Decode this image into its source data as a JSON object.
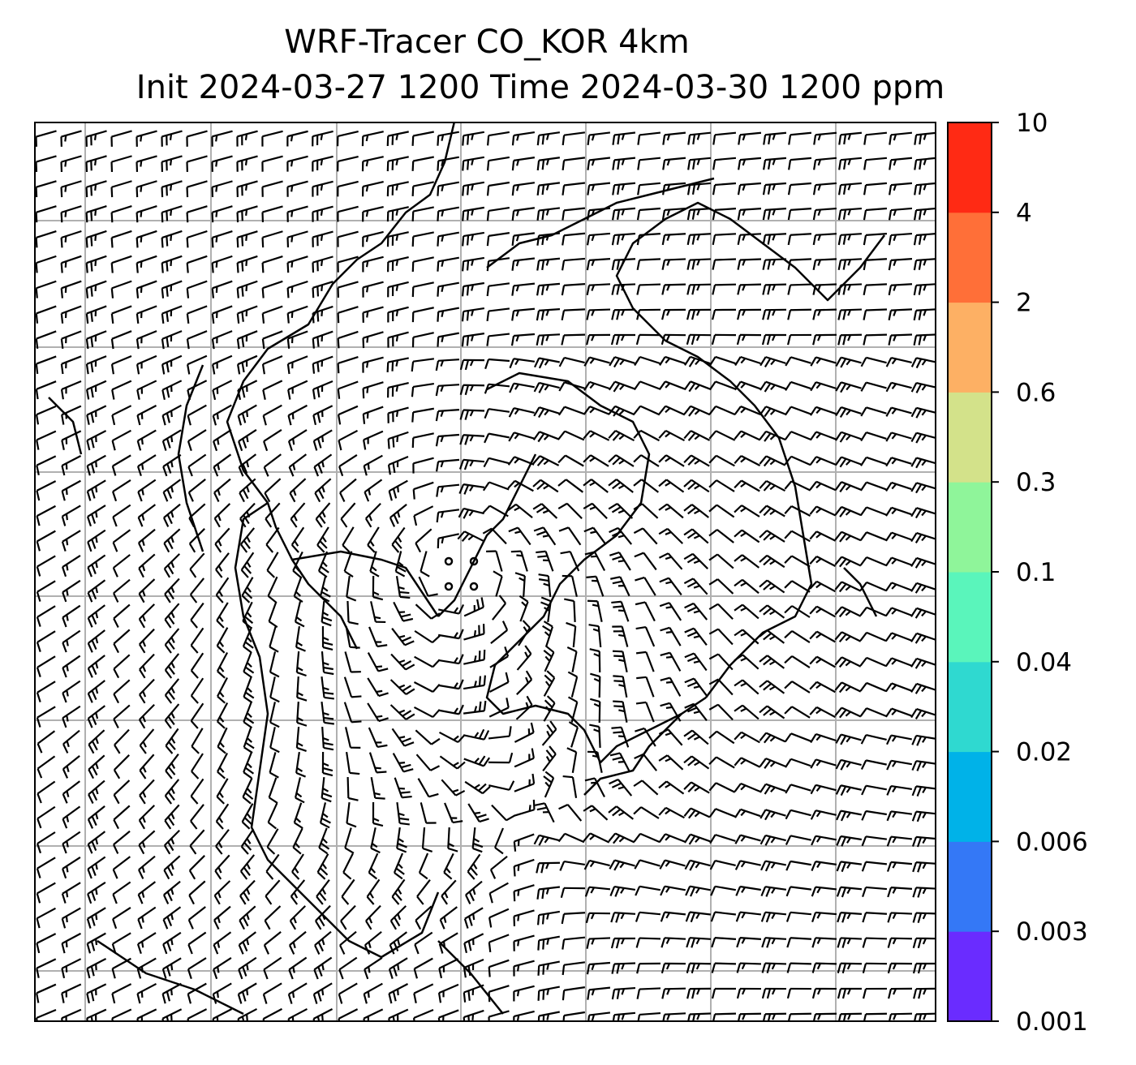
{
  "title": {
    "line1": "WRF-Tracer CO_KOR 4km",
    "line2": "Init 2024-03-27 1200 Time 2024-03-30 1200 ppm"
  },
  "map": {
    "gridlines": true,
    "gridline_color": "#b0b0b0",
    "overlay": "wind barbs",
    "coastline_color": "#000000"
  },
  "colorbar": {
    "levels": [
      "0.001",
      "0.003",
      "0.006",
      "0.02",
      "0.04",
      "0.1",
      "0.3",
      "0.6",
      "2",
      "4",
      "10"
    ],
    "colors": [
      "#6a2cff",
      "#3478f6",
      "#00b2e8",
      "#2fd9d0",
      "#5af5bb",
      "#8ff59a",
      "#d3e28a",
      "#fdb064",
      "#ff6f38",
      "#ff2a14"
    ]
  },
  "colors": {
    "frame": "#000000",
    "background": "#ffffff"
  }
}
